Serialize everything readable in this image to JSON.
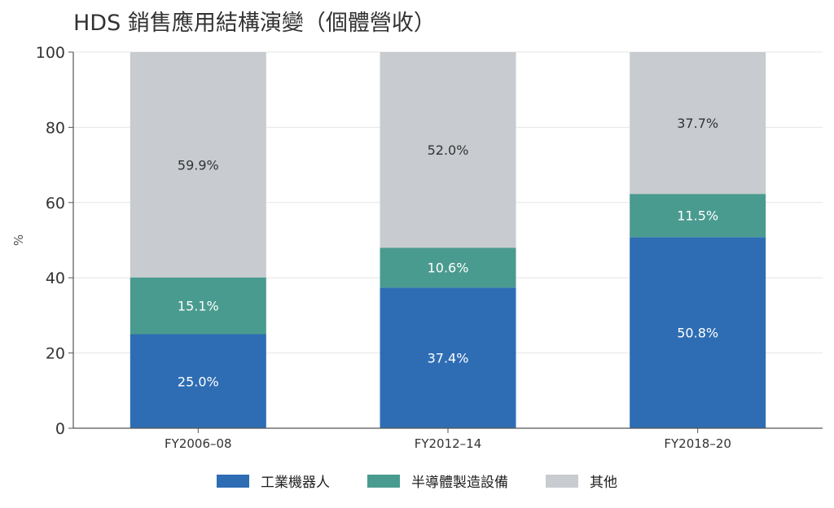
{
  "chart_data": {
    "type": "bar",
    "stacked": true,
    "title": "HDS 銷售應用結構演變（個體營收）",
    "ylabel": "%",
    "ylim": [
      0,
      100
    ],
    "yticks": [
      0,
      20,
      40,
      60,
      80,
      100
    ],
    "grid": true,
    "legend_position": "bottom",
    "categories": [
      "FY2006–08",
      "FY2012–14",
      "FY2018–20"
    ],
    "series": [
      {
        "name": "工業機器人",
        "color": "#2e6db4",
        "label_color": "#ffffff",
        "values": [
          25.0,
          37.4,
          50.8
        ],
        "labels": [
          "25.0%",
          "37.4%",
          "50.8%"
        ]
      },
      {
        "name": "半導體製造設備",
        "color": "#4a9b8f",
        "label_color": "#ffffff",
        "values": [
          15.1,
          10.6,
          11.5
        ],
        "labels": [
          "15.1%",
          "10.6%",
          "11.5%"
        ]
      },
      {
        "name": "其他",
        "color": "#c8cbcf",
        "label_color": "#333333",
        "values": [
          59.9,
          52.0,
          37.7
        ],
        "labels": [
          "59.9%",
          "52.0%",
          "37.7%"
        ]
      }
    ]
  }
}
